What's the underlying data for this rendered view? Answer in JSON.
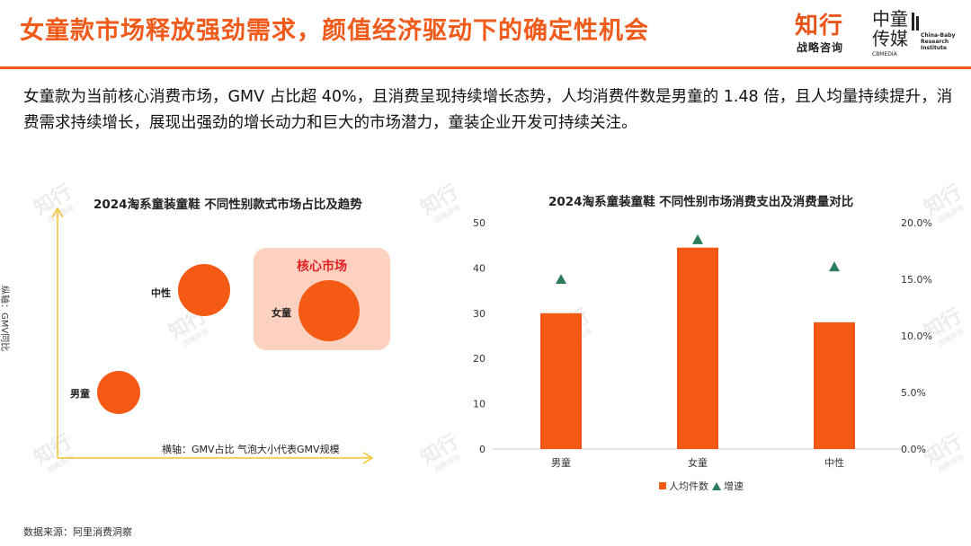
{
  "header": {
    "title": "女童款市场释放强劲需求，颜值经济驱动下的确定性机会",
    "logo_zhixing": "知行",
    "logo_zhixing_sub": "战略咨询",
    "logo_zhongtong": "中童传媒",
    "logo_zhongtong_sub": "CBMEDIA",
    "logo_institute": "China-Baby Research Institute"
  },
  "description": "女童款为当前核心消费市场，GMV 占比超 40%，且消费呈现持续增长态势，人均消费件数是男童的 1.48 倍，且人均量持续提升，消费需求持续增长，展现出强劲的增长动力和巨大的市场潜力，童装企业开发可持续关注。",
  "watermark": {
    "text": "知行",
    "sub": "战略咨询"
  },
  "source": "数据来源：阿里消费洞察",
  "colors": {
    "accent": "#f05a1a",
    "bar": "#f45a14",
    "marker": "#2e7d5a",
    "core_box": "#fcd1bf"
  },
  "chart_data": [
    {
      "type": "scatter",
      "title": "2024淘系童装童鞋 不同性别款式市场占比及趋势",
      "xlabel": "横轴：GMV占比 气泡大小代表GMV规模",
      "ylabel": "纵轴：GMV同比",
      "annotation": "核心市场",
      "points": [
        {
          "label": "中性",
          "x": 0.3,
          "y": 0.7,
          "size": 0.75
        },
        {
          "label": "女童",
          "x": 0.75,
          "y": 0.6,
          "size": 1.0
        },
        {
          "label": "男童",
          "x": 0.18,
          "y": 0.28,
          "size": 0.7
        }
      ]
    },
    {
      "type": "bar",
      "title": "2024淘系童装童鞋 不同性别市场消费支出及消费量对比",
      "categories": [
        "男童",
        "女童",
        "中性"
      ],
      "ylim": [
        0,
        50
      ],
      "yticks": [
        "0",
        "10",
        "20",
        "30",
        "40",
        "50"
      ],
      "y2lim": [
        0,
        20
      ],
      "y2ticks": [
        "0.0%",
        "5.0%",
        "10.0%",
        "15.0%",
        "20.0%"
      ],
      "series": [
        {
          "name": "人均件数",
          "kind": "bar",
          "axis": "left",
          "values": [
            30,
            44.5,
            28
          ]
        },
        {
          "name": "增速",
          "kind": "marker",
          "axis": "right",
          "values": [
            15.0,
            18.5,
            16.1
          ]
        }
      ],
      "legend": "bottom"
    }
  ]
}
